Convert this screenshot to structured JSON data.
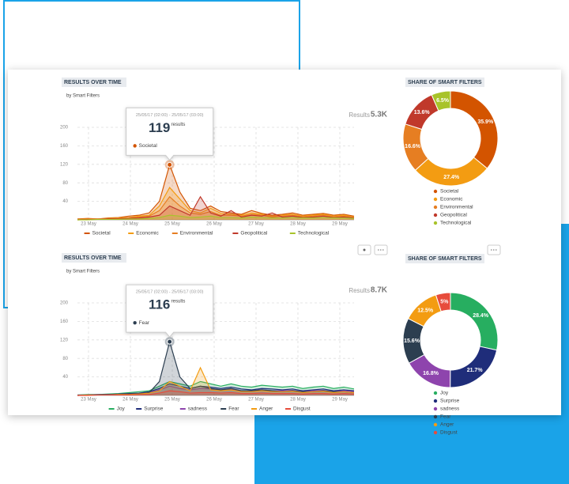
{
  "chart_data": [
    {
      "type": "line",
      "title": "RESULTS OVER TIME",
      "subtitle": "by Smart Filters",
      "results_label": "Results",
      "results_value": "5.3K",
      "ylim": [
        0,
        200
      ],
      "yticks": [
        40,
        80,
        120,
        160,
        200
      ],
      "grid": true,
      "xtick_labels": [
        "23 May",
        "24 May",
        "25 May",
        "26 May",
        "27 May",
        "28 May",
        "29 May"
      ],
      "tooltip": {
        "range": "25/05/17 (02:00) - 25/05/17 (03:00)",
        "value": 119,
        "unit": "results",
        "series": "Societal"
      },
      "series": [
        {
          "name": "Societal",
          "color": "#d35400",
          "values": [
            2,
            3,
            2,
            4,
            5,
            8,
            10,
            15,
            40,
            119,
            60,
            25,
            20,
            30,
            18,
            15,
            12,
            20,
            14,
            10,
            12,
            15,
            10,
            12,
            14,
            10,
            12,
            8
          ]
        },
        {
          "name": "Economic",
          "color": "#f39c12",
          "values": [
            1,
            2,
            2,
            3,
            4,
            5,
            8,
            10,
            30,
            70,
            45,
            20,
            15,
            25,
            14,
            12,
            10,
            15,
            12,
            8,
            10,
            12,
            8,
            10,
            12,
            8,
            10,
            6
          ]
        },
        {
          "name": "Environmental",
          "color": "#e67e22",
          "values": [
            1,
            1,
            2,
            2,
            3,
            4,
            6,
            8,
            20,
            50,
            30,
            15,
            12,
            18,
            10,
            10,
            8,
            12,
            10,
            6,
            8,
            10,
            6,
            8,
            10,
            6,
            8,
            5
          ]
        },
        {
          "name": "Geopolitical",
          "color": "#c0392b",
          "values": [
            0,
            1,
            1,
            2,
            2,
            3,
            4,
            6,
            10,
            30,
            20,
            10,
            50,
            15,
            8,
            20,
            6,
            10,
            8,
            15,
            6,
            8,
            5,
            6,
            8,
            5,
            6,
            4
          ]
        },
        {
          "name": "Technological",
          "color": "#a8c32a",
          "values": [
            0,
            0,
            1,
            1,
            1,
            2,
            2,
            3,
            5,
            10,
            8,
            5,
            6,
            8,
            5,
            5,
            4,
            6,
            5,
            4,
            4,
            5,
            4,
            4,
            5,
            4,
            4,
            3
          ]
        }
      ]
    },
    {
      "type": "donut",
      "title": "SHARE OF SMART FILTERS",
      "categories": [
        "Societal",
        "Economic",
        "Environmental",
        "Geopolitical",
        "Technological"
      ],
      "values": [
        35.9,
        27.4,
        16.6,
        13.6,
        6.5
      ],
      "value_labels": [
        "35.9%",
        "27.4%",
        "16.6%",
        "13.6%",
        "6.5%"
      ],
      "colors": [
        "#d35400",
        "#f39c12",
        "#e67e22",
        "#c0392b",
        "#a8c32a"
      ]
    },
    {
      "type": "line",
      "title": "RESULTS OVER TIME",
      "subtitle": "by Smart Filters",
      "results_label": "Results",
      "results_value": "8.7K",
      "ylim": [
        0,
        200
      ],
      "yticks": [
        40,
        80,
        120,
        160,
        200
      ],
      "grid": true,
      "xtick_labels": [
        "23 May",
        "24 May",
        "25 May",
        "26 May",
        "27 May",
        "28 May",
        "29 May"
      ],
      "tooltip": {
        "range": "25/05/17 (02:00) - 25/05/17 (03:00)",
        "value": 116,
        "unit": "results",
        "series": "Fear"
      },
      "series": [
        {
          "name": "Joy",
          "color": "#27ae60",
          "values": [
            1,
            2,
            2,
            3,
            4,
            6,
            8,
            10,
            20,
            30,
            25,
            20,
            30,
            25,
            20,
            25,
            20,
            18,
            22,
            20,
            18,
            20,
            15,
            18,
            20,
            15,
            18,
            14
          ]
        },
        {
          "name": "Surprise",
          "color": "#1f2d7a",
          "values": [
            1,
            1,
            2,
            2,
            3,
            4,
            5,
            8,
            15,
            25,
            20,
            15,
            20,
            18,
            15,
            18,
            14,
            12,
            15,
            14,
            12,
            14,
            10,
            12,
            14,
            10,
            12,
            10
          ]
        },
        {
          "name": "sadness",
          "color": "#8e44ad",
          "values": [
            0,
            1,
            1,
            2,
            2,
            3,
            4,
            6,
            12,
            20,
            15,
            12,
            15,
            14,
            12,
            14,
            10,
            10,
            12,
            10,
            10,
            11,
            8,
            10,
            11,
            8,
            10,
            8
          ]
        },
        {
          "name": "Fear",
          "color": "#2c3e50",
          "values": [
            0,
            1,
            1,
            2,
            2,
            3,
            4,
            6,
            30,
            116,
            40,
            15,
            20,
            15,
            12,
            15,
            10,
            10,
            12,
            10,
            8,
            10,
            8,
            8,
            10,
            8,
            8,
            6
          ]
        },
        {
          "name": "Anger",
          "color": "#f39c12",
          "values": [
            0,
            1,
            1,
            1,
            2,
            2,
            3,
            5,
            10,
            30,
            20,
            10,
            60,
            12,
            10,
            12,
            8,
            8,
            10,
            8,
            8,
            9,
            6,
            8,
            9,
            6,
            8,
            6
          ]
        },
        {
          "name": "Disgust",
          "color": "#e74c3c",
          "values": [
            0,
            0,
            1,
            1,
            1,
            1,
            2,
            2,
            5,
            10,
            8,
            5,
            6,
            6,
            5,
            6,
            4,
            4,
            5,
            4,
            4,
            4,
            3,
            4,
            4,
            3,
            4,
            3
          ]
        }
      ]
    },
    {
      "type": "donut",
      "title": "SHARE OF SMART FILTERS",
      "categories": [
        "Joy",
        "Surprise",
        "sadness",
        "Fear",
        "Anger",
        "Disgust"
      ],
      "values": [
        28.4,
        21.7,
        16.8,
        15.6,
        12.5,
        5
      ],
      "value_labels": [
        "28.4%",
        "21.7%",
        "16.8%",
        "15.6%",
        "12.5%",
        "5%"
      ],
      "colors": [
        "#27ae60",
        "#1f2d7a",
        "#8e44ad",
        "#2c3e50",
        "#f39c12",
        "#e74c3c"
      ]
    }
  ]
}
